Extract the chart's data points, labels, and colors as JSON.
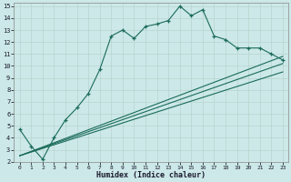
{
  "xlabel": "Humidex (Indice chaleur)",
  "bg_color": "#cce8e8",
  "grid_color": "#b8d4d0",
  "line_color": "#1a6b5a",
  "xlim": [
    -0.5,
    23.5
  ],
  "ylim": [
    2,
    15.3
  ],
  "xticks": [
    0,
    1,
    2,
    3,
    4,
    5,
    6,
    7,
    8,
    9,
    10,
    11,
    12,
    13,
    14,
    15,
    16,
    17,
    18,
    19,
    20,
    21,
    22,
    23
  ],
  "yticks": [
    2,
    3,
    4,
    5,
    6,
    7,
    8,
    9,
    10,
    11,
    12,
    13,
    14,
    15
  ],
  "line1_x": [
    0,
    1,
    2,
    3,
    4,
    5,
    6,
    7,
    8,
    9,
    10,
    11,
    12,
    13,
    14,
    15,
    16,
    17,
    18,
    19,
    20,
    21,
    22,
    23
  ],
  "line1_y": [
    4.7,
    3.3,
    2.2,
    4.0,
    5.5,
    6.5,
    7.7,
    9.7,
    12.5,
    13.0,
    12.3,
    13.3,
    13.5,
    13.8,
    15.0,
    14.2,
    14.7,
    12.5,
    12.2,
    11.5,
    11.5,
    11.5,
    11.0,
    10.5
  ],
  "line2_x": [
    0,
    23
  ],
  "line2_y": [
    2.5,
    10.8
  ],
  "line3_x": [
    0,
    23
  ],
  "line3_y": [
    2.5,
    10.2
  ],
  "line4_x": [
    0,
    23
  ],
  "line4_y": [
    2.5,
    9.5
  ]
}
